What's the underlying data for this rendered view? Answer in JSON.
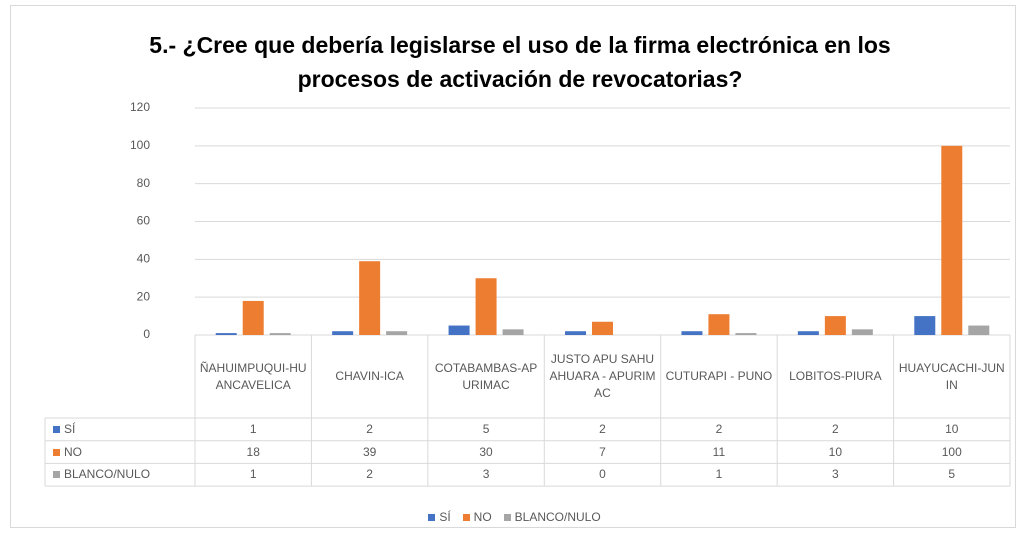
{
  "chart_data": {
    "type": "bar",
    "title": "5.- ¿Cree que debería legislarse el uso de la firma electrónica en los procesos de activación de revocatorias?",
    "categories": [
      "ÑAHUIMPUQUI-HUANCAVELICA",
      "CHAVIN-ICA",
      "COTABAMBAS-APURIMAC",
      "JUSTO APU SAHUAHUARA - APURIMAC",
      "CUTURAPI - PUNO",
      "LOBITOS-PIURA",
      "HUAYUCACHI-JUNIN"
    ],
    "series": [
      {
        "name": "SÍ",
        "color": "#4472c4",
        "values": [
          1,
          2,
          5,
          2,
          2,
          2,
          10
        ]
      },
      {
        "name": "NO",
        "color": "#ed7d31",
        "values": [
          18,
          39,
          30,
          7,
          11,
          10,
          100
        ]
      },
      {
        "name": "BLANCO/NULO",
        "color": "#a5a5a5",
        "values": [
          1,
          2,
          3,
          0,
          1,
          3,
          5
        ]
      }
    ],
    "ylim": [
      0,
      120
    ],
    "yticks": [
      0,
      20,
      40,
      60,
      80,
      100,
      120
    ],
    "grid": true,
    "legend": "bottom"
  }
}
